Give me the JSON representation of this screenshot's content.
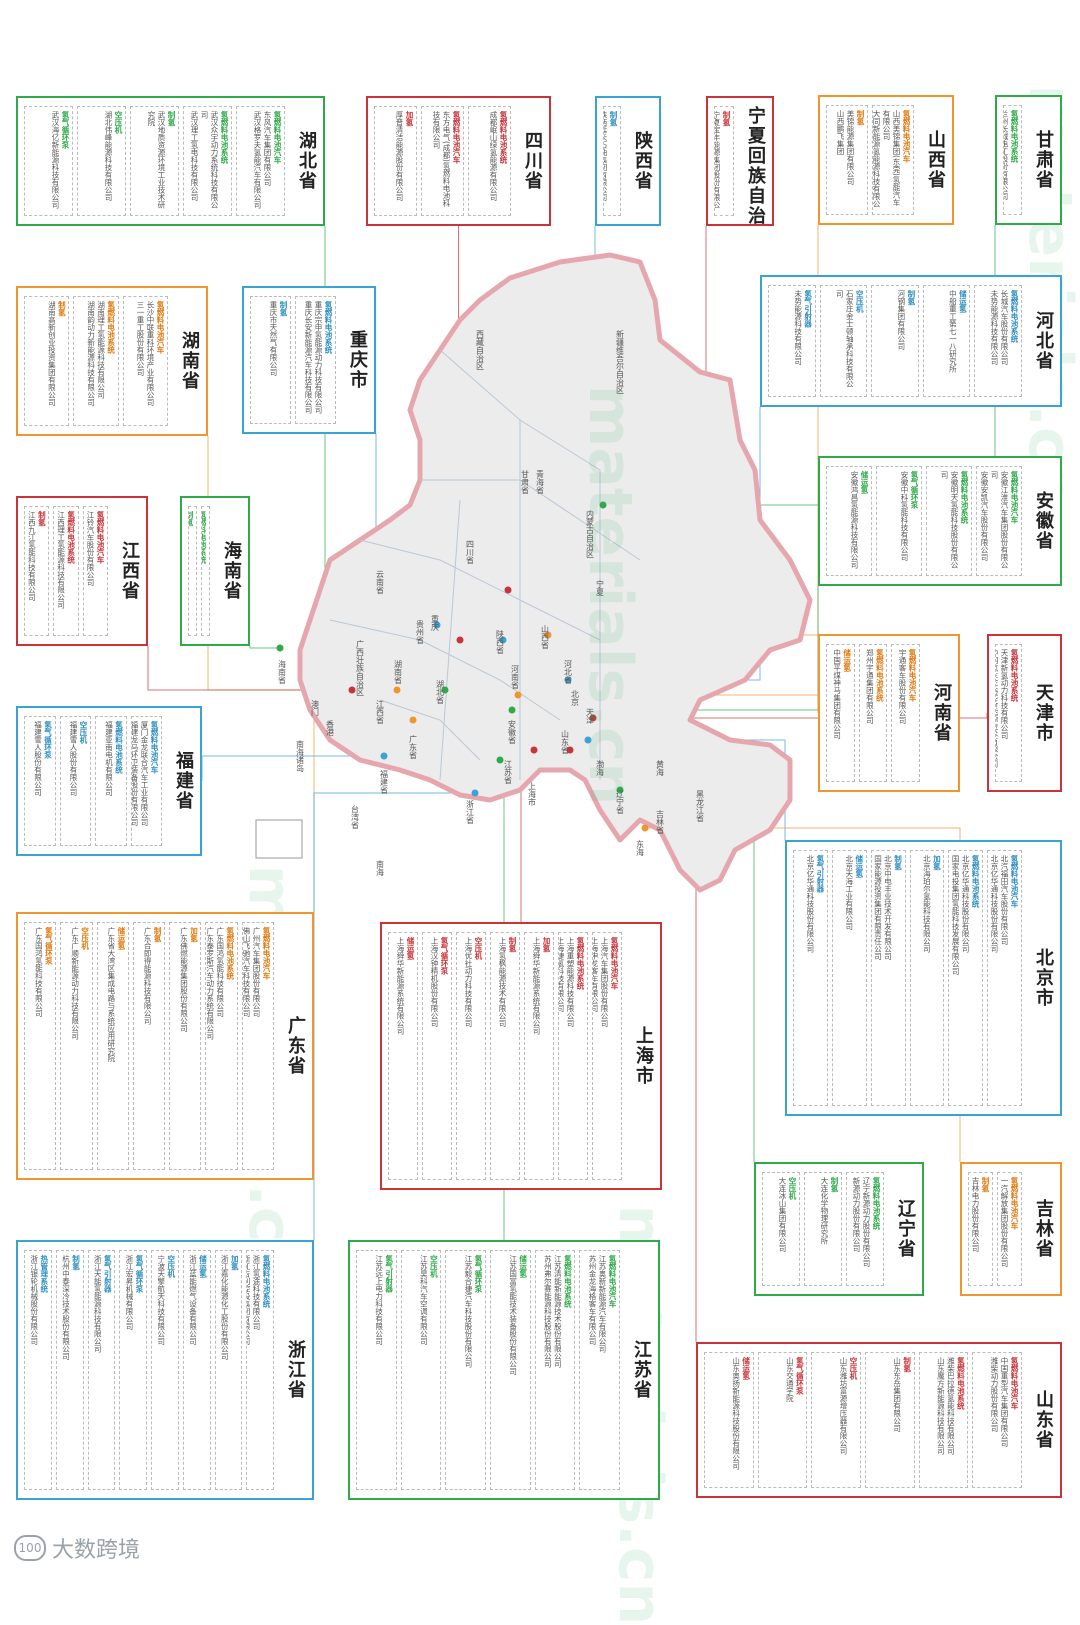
{
  "boxes": [
    {
      "key": "gansu",
      "name": "甘肃省",
      "color": "green",
      "cats": [
        {
          "name": "氢燃料电池系统",
          "companies": [
            "兰州长城电工股份有限公司"
          ]
        }
      ]
    },
    {
      "key": "shanxi",
      "name": "山西省",
      "color": "orange",
      "cats": [
        {
          "name": "氢燃料电池汽车",
          "companies": [
            "山西美锦集团(东莞)氢能汽车有限公司",
            "大同新能源氢能源科技有限公司"
          ]
        },
        {
          "name": "制氢",
          "companies": [
            "美锦能源集团有限公司",
            "山西鹏飞集团"
          ]
        }
      ]
    },
    {
      "key": "ningxia",
      "name": "宁夏回族自治区",
      "color": "red",
      "cats": [
        {
          "name": "制氢",
          "companies": [
            "宁夏宝丰能源集团股份有限公司"
          ]
        }
      ]
    },
    {
      "key": "shaanxi",
      "name": "陕西省",
      "color": "blue",
      "cats": [
        {
          "name": "制氢",
          "companies": [
            "陕西延长石油集团有限公司"
          ]
        }
      ]
    },
    {
      "key": "sichuan",
      "name": "四川省",
      "color": "red",
      "cats": [
        {
          "name": "氢燃料电池系统",
          "companies": [
            "成都岷山绿氢能源有限公司"
          ]
        },
        {
          "name": "氢燃料电池汽车",
          "companies": [
            "东方电气(成都)氢燃料电池科技有限公司"
          ]
        },
        {
          "name": "加氢",
          "companies": [
            "厚普清洁能源股份有限公司"
          ]
        }
      ]
    },
    {
      "key": "hubei",
      "name": "湖北省",
      "color": "green",
      "cats": [
        {
          "name": "氢燃料电池汽车",
          "companies": [
            "东风汽车集团有限公司",
            "武汉格罗夫氢能汽车有限公司"
          ]
        },
        {
          "name": "氢燃料电池系统",
          "companies": [
            "武汉众宇动力系统科技有限公司",
            "武汉理工氢电科技有限公司"
          ]
        },
        {
          "name": "制氢",
          "companies": [
            "武汉地质资源环境工业技术研究院"
          ]
        },
        {
          "name": "空压机",
          "companies": [
            "湖北伟峰能源科技有限公司"
          ]
        },
        {
          "name": "氢气循环泵",
          "companies": [
            "武汉海亿新能源科技有限公司"
          ]
        }
      ]
    },
    {
      "key": "hebei",
      "name": "河北省",
      "color": "blue",
      "cats": [
        {
          "name": "氢燃料电池系统",
          "companies": [
            "长城汽车股份有限公司",
            "未势能源科技有限公司"
          ]
        },
        {
          "name": "储运氢",
          "companies": [
            "中船重工第七一八研究所"
          ]
        },
        {
          "name": "制氢",
          "companies": [
            "河钢集团有限公司"
          ]
        },
        {
          "name": "空压机",
          "companies": [
            "石家庄金士顿轴承科技有限公司"
          ]
        },
        {
          "name": "氢气引射器",
          "companies": [
            "未势能源科技有限公司"
          ]
        }
      ]
    },
    {
      "key": "chongqing",
      "name": "重庆市",
      "color": "blue",
      "cats": [
        {
          "name": "氢燃料电池系统",
          "companies": [
            "重庆宗申氢能源动力科技有限公司",
            "重庆长安新能源汽车科技有限公司"
          ]
        },
        {
          "name": "制氢",
          "companies": [
            "重庆市天然气有限公司"
          ]
        }
      ]
    },
    {
      "key": "hunan",
      "name": "湖南省",
      "color": "orange",
      "cats": [
        {
          "name": "氢燃料电池汽车",
          "companies": [
            "长沙中联重科环境产业有限公司",
            "三一重工股份有限公司"
          ]
        },
        {
          "name": "氢燃料电池系统",
          "companies": [
            "湖南理工氢能源科技有限公司",
            "湖南韵动力新能源科技有限公司"
          ]
        },
        {
          "name": "制氢",
          "companies": [
            "湖南高新创业投资集团有限公司"
          ]
        }
      ]
    },
    {
      "key": "anhui",
      "name": "安徽省",
      "color": "green",
      "cats": [
        {
          "name": "氢燃料电池汽车",
          "companies": [
            "安徽江淮汽车集团股份有限公司",
            "安徽安凯汽车股份有限公司"
          ]
        },
        {
          "name": "氢燃料电池系统",
          "companies": [
            "安徽明天氢能科技股份有限公司"
          ]
        },
        {
          "name": "氢气循环泵",
          "companies": [
            "安徽中科氢能科技有限公司"
          ]
        },
        {
          "name": "储运氢",
          "companies": [
            "安徽鸿昌氢能源科技有限公司"
          ]
        }
      ]
    },
    {
      "key": "hainan",
      "name": "海南省",
      "color": "green",
      "cats": [
        {
          "name": "氢燃料电池系统",
          "companies": [
            "海马汽车股份有限公司"
          ]
        },
        {
          "name": "制氢",
          "companies": [
            "海南华盛新材料科技有限公司"
          ]
        }
      ]
    },
    {
      "key": "jiangxi",
      "name": "江西省",
      "color": "red",
      "cats": [
        {
          "name": "氢燃料电池汽车",
          "companies": [
            "江铃汽车股份有限公司",
            "江西博能上饶客车有限公司"
          ]
        },
        {
          "name": "氢燃料电池系统",
          "companies": [
            "江西理工氢能源科技有限公司"
          ]
        },
        {
          "name": "制氢",
          "companies": [
            "江西九江氢能科技有限公司"
          ]
        }
      ]
    },
    {
      "key": "henan",
      "name": "河南省",
      "color": "orange",
      "cats": [
        {
          "name": "氢燃料电池汽车",
          "companies": [
            "宇通客车股份有限公司"
          ]
        },
        {
          "name": "氢燃料电池系统",
          "companies": [
            "郑州宇通集团有限公司"
          ]
        },
        {
          "name": "储运氢",
          "companies": [
            "中国平煤神马集团有限公司"
          ]
        }
      ]
    },
    {
      "key": "tianjin",
      "name": "天津市",
      "color": "red",
      "cats": [
        {
          "name": "氢燃料电池系统",
          "companies": [
            "天津新氢动力科技有限公司",
            "中国汽车(天津)新能源技术有限公司"
          ]
        }
      ]
    },
    {
      "key": "fujian",
      "name": "福建省",
      "color": "blue",
      "cats": [
        {
          "name": "氢燃料电池汽车",
          "companies": [
            "厦门金龙联合汽车工业有限公司",
            "福建龙马环卫装备股份有限公司"
          ]
        },
        {
          "name": "氢燃料电池系统",
          "companies": [
            "福建亚南电机有限公司"
          ]
        },
        {
          "name": "空压机",
          "companies": [
            "福建雪人股份有限公司"
          ]
        },
        {
          "name": "氢气循环泵",
          "companies": [
            "福建雪人股份有限公司"
          ]
        }
      ]
    },
    {
      "key": "beijing",
      "name": "北京市",
      "color": "blue",
      "cats": [
        {
          "name": "氢燃料电池汽车",
          "companies": [
            "北汽福田汽车股份有限公司",
            "北京亿华通科技股份有限公司"
          ]
        },
        {
          "name": "氢燃料电池系统",
          "companies": [
            "北京亿华通科技股份有限公司",
            "国家电投集团氢能科技发展有限公司"
          ]
        },
        {
          "name": "加氢",
          "companies": [
            "北京海珀尔氢能科技有限公司"
          ]
        },
        {
          "name": "制氢",
          "companies": [
            "北京中电丰业技术开发有限公司",
            "国家能源投资集团有限责任公司"
          ]
        },
        {
          "name": "储运氢",
          "companies": [
            "北京天海工业有限公司"
          ]
        },
        {
          "name": "氢气引射器",
          "companies": [
            "北京亿华通科技股份有限公司"
          ]
        }
      ]
    },
    {
      "key": "guangdong",
      "name": "广东省",
      "color": "orange",
      "cats": [
        {
          "name": "氢燃料电池汽车",
          "companies": [
            "广州汽车集团股份有限公司",
            "佛山飞驰汽车科技有限公司"
          ]
        },
        {
          "name": "氢燃料电池系统",
          "companies": [
            "广东国鸿氢能科技有限公司",
            "广东泰罗斯汽车动力系统有限公司"
          ]
        },
        {
          "name": "加氢",
          "companies": [
            "广东佛燃能源集团股份有限公司"
          ]
        },
        {
          "name": "制氢",
          "companies": [
            "广东合即得能源科技有限公司"
          ]
        },
        {
          "name": "储运氢",
          "companies": [
            "广东省大湾区集成电路与系统应用研究院"
          ]
        },
        {
          "name": "空压机",
          "companies": [
            "广东广顺新能源动力科技有限公司"
          ]
        },
        {
          "name": "氢气循环泵",
          "companies": [
            "广东国鸿氢能科技有限公司"
          ]
        }
      ]
    },
    {
      "key": "shanghai",
      "name": "上海市",
      "color": "red",
      "cats": [
        {
          "name": "氢燃料电池汽车",
          "companies": [
            "上海汽车集团股份有限公司",
            "上海申龙客车有限公司"
          ]
        },
        {
          "name": "氢燃料电池系统",
          "companies": [
            "上海重塑能源科技有限公司",
            "上海捷氢科技有限公司"
          ]
        },
        {
          "name": "加氢",
          "companies": [
            "上海舜华新能源系统有限公司"
          ]
        },
        {
          "name": "制氢",
          "companies": [
            "上海氢枫能源技术有限公司"
          ]
        },
        {
          "name": "空压机",
          "companies": [
            "上海优社动力科技有限公司"
          ]
        },
        {
          "name": "氢气循环泵",
          "companies": [
            "上海汉钟精机股份有限公司"
          ]
        },
        {
          "name": "储运氢",
          "companies": [
            "上海舜华新能源系统有限公司"
          ]
        }
      ]
    },
    {
      "key": "jilin",
      "name": "吉林省",
      "color": "orange",
      "cats": [
        {
          "name": "氢燃料电池汽车",
          "companies": [
            "一汽解放集团股份有限公司"
          ]
        },
        {
          "name": "制氢",
          "companies": [
            "吉林电力股份有限公司"
          ]
        }
      ]
    },
    {
      "key": "liaoning",
      "name": "辽宁省",
      "color": "green",
      "cats": [
        {
          "name": "氢燃料电池系统",
          "companies": [
            "辽宁新源动力股份有限公司",
            "新源动力股份有限公司"
          ]
        },
        {
          "name": "制氢",
          "companies": [
            "大连化学物理研究所"
          ]
        },
        {
          "name": "空压机",
          "companies": [
            "大连冰山集团有限公司"
          ]
        }
      ]
    },
    {
      "key": "zhejiang",
      "name": "浙江省",
      "color": "blue",
      "cats": [
        {
          "name": "氢燃料电池系统",
          "companies": [
            "浙江氢途科技有限公司",
            "浙江吉利控股集团有限公司"
          ]
        },
        {
          "name": "加氢",
          "companies": [
            "浙江嘉化能源化工股份有限公司"
          ]
        },
        {
          "name": "储运氢",
          "companies": [
            "浙江蓝能燃气设备有限公司"
          ]
        },
        {
          "name": "空压机",
          "companies": [
            "宁波天擎航天科技有限公司"
          ]
        },
        {
          "name": "氢气循环泵",
          "companies": [
            "浙江宏昇机械有限公司"
          ]
        },
        {
          "name": "氢气引射器",
          "companies": [
            "浙江天能氢能源科技有限公司"
          ]
        },
        {
          "name": "制氢",
          "companies": [
            "杭州中泰深冷技术股份有限公司"
          ]
        },
        {
          "name": "热管理系统",
          "companies": [
            "浙江银轮机械股份有限公司"
          ]
        }
      ]
    },
    {
      "key": "jiangsu",
      "name": "江苏省",
      "color": "green",
      "cats": [
        {
          "name": "氢燃料电池汽车",
          "companies": [
            "江苏奥新新能源汽车有限公司",
            "苏州金龙海格客车有限公司"
          ]
        },
        {
          "name": "氢燃料电池系统",
          "companies": [
            "江苏清能新能源技术股份有限公司",
            "苏州弗尔赛能源科技股份有限公司"
          ]
        },
        {
          "name": "储运氢",
          "companies": [
            "江苏国富氢能技术装备股份有限公司"
          ]
        },
        {
          "name": "氢气循环泵",
          "companies": [
            "江苏毅合捷汽车科技股份有限公司"
          ]
        },
        {
          "name": "空压机",
          "companies": [
            "江苏昊科汽车空调有限公司"
          ]
        },
        {
          "name": "氢气引射器",
          "companies": [
            "江苏远上电力科技有限公司"
          ]
        }
      ]
    },
    {
      "key": "shandong",
      "name": "山东省",
      "color": "red",
      "cats": [
        {
          "name": "氢燃料电池汽车",
          "companies": [
            "中国重型汽车集团有限公司",
            "潍柴动力股份有限公司"
          ]
        },
        {
          "name": "氢燃料电池系统",
          "companies": [
            "潍柴巴拉德氢能科技有限公司",
            "山东魔方新能源科技有限公司"
          ]
        },
        {
          "name": "制氢",
          "companies": [
            "山东东岳集团有限公司"
          ]
        },
        {
          "name": "空压机",
          "companies": [
            "山东潍坊富源增压器有限公司"
          ]
        },
        {
          "name": "氢气循环泵",
          "companies": [
            "山东交通学院"
          ]
        },
        {
          "name": "储运氢",
          "companies": [
            "山东奥扬新能源科技股份有限公司"
          ]
        }
      ]
    }
  ],
  "map_labels": [
    "新疆维吾尔自治区",
    "西藏自治区",
    "青海省",
    "甘肃省",
    "内蒙古自治区",
    "宁夏",
    "四川省",
    "云南省",
    "广西壮族自治区",
    "贵州省",
    "湖南省",
    "湖北省",
    "河南省",
    "陕西省",
    "山西省",
    "河北省",
    "山东省",
    "江苏省",
    "安徽省",
    "浙江省",
    "江西省",
    "福建省",
    "广东省",
    "台湾省",
    "海南省",
    "黑龙江省",
    "吉林省",
    "辽宁省",
    "北京",
    "天津",
    "上海市",
    "重庆",
    "澳门",
    "香港",
    "南海诸岛",
    "东海",
    "黄海",
    "渤海",
    "南海"
  ],
  "watermark": "materials.cn",
  "footer": {
    "logo_mark": "100",
    "text": "大数跨境"
  },
  "colors": {
    "red": "#c9343a",
    "green": "#2faa4a",
    "orange": "#f0962e",
    "blue": "#3aa3d6",
    "map_fill": "#ececec",
    "map_border": "#e6a6ad"
  }
}
